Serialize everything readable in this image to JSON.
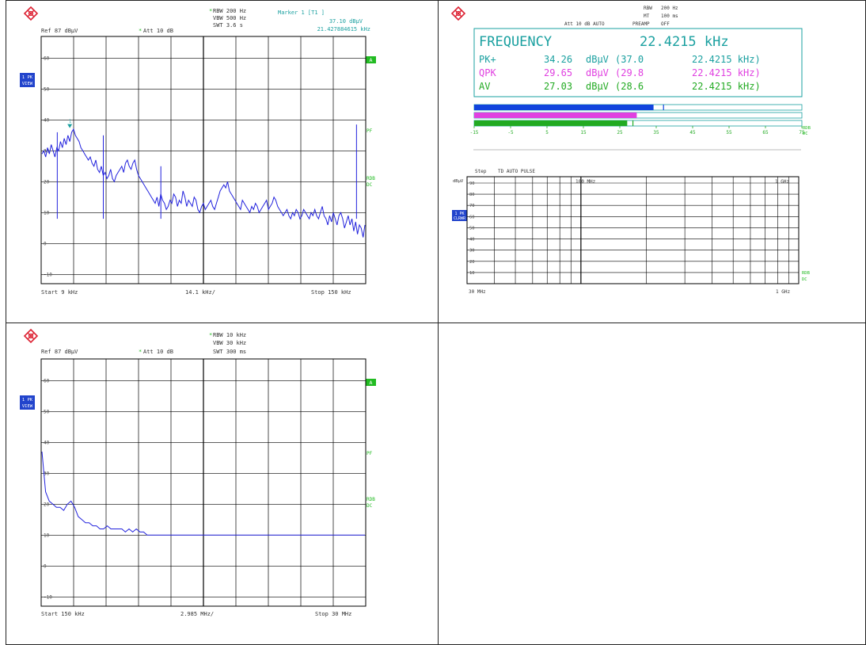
{
  "colors": {
    "trace": "#2222dd",
    "grid": "#000000",
    "cyan": "#1aa0a0",
    "green_label": "#22bb22",
    "magenta": "#e040e0",
    "pk_blue": "#1144dd",
    "av_green": "#22aa22",
    "badge_blue": "#2244cc"
  },
  "panel1": {
    "logo_icon": "rs-logo-icon",
    "hdr_rbw": "RBW 200 Hz",
    "hdr_vbw": "VBW 500 Hz",
    "hdr_swt": "SWT 3.6 s",
    "hdr_att": "Att 10 dB",
    "hdr_ref": "Ref 87 dBµV",
    "marker_title": "Marker 1 [T1 ]",
    "marker_level": "37.10 dBµV",
    "marker_freq": "21.427884615 kHz",
    "badge_top": "1 PK",
    "badge_bot": "VIEW",
    "tag_a": "A",
    "tag_pf": "PF",
    "tag_rdb": "RDB",
    "tag_dc": "DC",
    "start": "Start 9 kHz",
    "div": "14.1 kHz/",
    "stop": "Stop 150 kHz",
    "chart_data": {
      "type": "line",
      "x_start_khz": 9,
      "x_stop_khz": 150,
      "ylim": [
        -13,
        67
      ],
      "ytick_labels": [
        "60",
        "50",
        "40",
        "30",
        "20",
        "10",
        "0",
        "-10"
      ],
      "marker": {
        "freq_khz": 21.43,
        "level": 37.1
      },
      "series": [
        {
          "values": [
            29,
            30,
            28,
            31,
            29,
            32,
            30,
            28,
            31,
            30,
            33,
            31,
            34,
            32,
            35,
            33,
            36,
            37,
            35,
            34,
            33,
            31,
            30,
            29,
            28,
            27,
            28,
            26,
            25,
            27,
            24,
            23,
            25,
            22,
            23,
            21,
            22,
            24,
            21,
            20,
            22,
            23,
            24,
            25,
            23,
            26,
            27,
            25,
            24,
            26,
            27,
            24,
            22,
            21,
            20,
            19,
            18,
            17,
            16,
            15,
            14,
            13,
            15,
            12,
            16,
            14,
            13,
            11,
            12,
            14,
            13,
            16,
            15,
            12,
            14,
            13,
            17,
            15,
            12,
            14,
            13,
            12,
            15,
            14,
            11,
            10,
            12,
            13,
            11,
            12,
            13,
            14,
            12,
            11,
            13,
            15,
            17,
            18,
            19,
            18,
            20,
            17,
            16,
            15,
            14,
            13,
            12,
            11,
            14,
            13,
            12,
            11,
            10,
            12,
            11,
            13,
            12,
            10,
            11,
            12,
            13,
            14,
            11,
            12,
            13,
            15,
            14,
            12,
            11,
            10,
            9,
            10,
            11,
            9,
            8,
            10,
            9,
            11,
            10,
            8,
            9,
            11,
            10,
            9,
            8,
            10,
            9,
            11,
            9,
            8,
            10,
            12,
            9,
            8,
            6,
            9,
            7,
            10,
            8,
            6,
            9,
            10,
            8,
            5,
            7,
            9,
            6,
            8,
            4,
            7,
            3,
            6,
            5,
            2,
            6
          ]
        }
      ],
      "spikes": [
        {
          "freq_khz": 16.0,
          "level": 36
        },
        {
          "freq_khz": 36.0,
          "level": 35
        },
        {
          "freq_khz": 61.0,
          "level": 25
        },
        {
          "freq_khz": 146.0,
          "level": 38.5
        }
      ]
    }
  },
  "panel2": {
    "logo_icon": "rs-logo-icon",
    "hdr_rbw": "RBW",
    "hdr_rbw_val": "200 Hz",
    "hdr_mt": "MT",
    "hdr_mt_val": "100 ms",
    "hdr_att": "Att 10 dB AUTO",
    "hdr_preamp": "PREAMP",
    "hdr_preamp_val": "OFF",
    "freq_label": "FREQUENCY",
    "freq_value": "22.4215 kHz",
    "rows": [
      {
        "det": "PK+",
        "value": "34.26",
        "unit": "dBµV",
        "paren": "(37.0",
        "freq": "22.4215 kHz)"
      },
      {
        "det": "QPK",
        "value": "29.65",
        "unit": "dBµV",
        "paren": "(29.8",
        "freq": "22.4215 kHz)"
      },
      {
        "det": "AV",
        "value": "27.03",
        "unit": "dBµV",
        "paren": "(28.6",
        "freq": "22.4215 kHz)"
      }
    ],
    "bar_scale": [
      "-15",
      "-5",
      "5",
      "15",
      "25",
      "35",
      "45",
      "55",
      "65",
      "75"
    ],
    "bar_unit_top": "RDB",
    "bar_unit_bot": "DC",
    "bars": {
      "range": [
        -15,
        75
      ],
      "pk": 34.26,
      "qpk": 29.65,
      "av": 27.03,
      "pk_max": 37.0,
      "av_max": 28.6
    },
    "scan_hdr_step": "Step",
    "scan_hdr_mode": "TD AUTO PULSE",
    "scan_unit": "dBµV",
    "scan_mid": "100 MHz",
    "scan_right": "1 GHz",
    "scan_start": "30 MHz",
    "scan_stop": "1 GHz",
    "scan_badge_top": "1 PK",
    "scan_badge_bot": "CLRWR",
    "scan_tag_rdb": "RDB",
    "scan_tag_dc": "DC",
    "scan_yticks": [
      "90",
      "80",
      "70",
      "60",
      "50",
      "40",
      "30",
      "20",
      "10"
    ]
  },
  "panel3": {
    "logo_icon": "rs-logo-icon",
    "hdr_rbw": "RBW 10 kHz",
    "hdr_vbw": "VBW 30 kHz",
    "hdr_swt": "SWT 300 ms",
    "hdr_att": "Att 10 dB",
    "hdr_ref": "Ref 87 dBµV",
    "badge_top": "1 PK",
    "badge_bot": "VIEW",
    "tag_a": "A",
    "tag_pf": "PF",
    "tag_rdb": "RDB",
    "tag_dc": "DC",
    "start": "Start 150 kHz",
    "div": "2.985 MHz/",
    "stop": "Stop 30 MHz",
    "chart_data": {
      "type": "line",
      "x_start_mhz": 0.15,
      "x_stop_mhz": 30,
      "ylim": [
        -13,
        67
      ],
      "ytick_labels": [
        "60",
        "50",
        "40",
        "30",
        "20",
        "10",
        "0",
        "-10"
      ],
      "series": [
        {
          "values": [
            37,
            24,
            21,
            20,
            19,
            19,
            18,
            20,
            21,
            19,
            16,
            15,
            14,
            14,
            13,
            13,
            12,
            12,
            13,
            12,
            12,
            12,
            12,
            11,
            12,
            11,
            12,
            11,
            11,
            10,
            10,
            10,
            10,
            10,
            10,
            10,
            10,
            10,
            10,
            10,
            10,
            10,
            10,
            10,
            10,
            10,
            10,
            10,
            10,
            10,
            10,
            10,
            10,
            10,
            10,
            10,
            10,
            10,
            10,
            10,
            10,
            10,
            10,
            10,
            10,
            10,
            10,
            10,
            10,
            10,
            10,
            10,
            10,
            10,
            10,
            10,
            10,
            10,
            10,
            10,
            10,
            10,
            10,
            10,
            10,
            10,
            10,
            10,
            10,
            10
          ]
        }
      ]
    }
  }
}
